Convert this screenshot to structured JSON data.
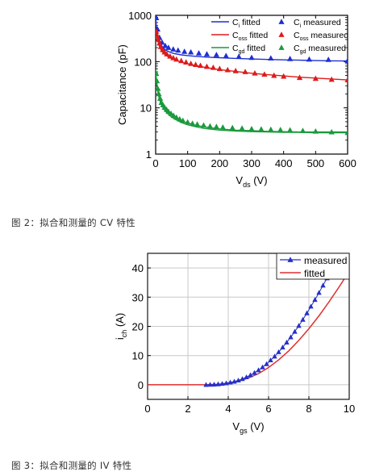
{
  "captions": {
    "fig2": "图 2：拟合和测量的 CV 特性",
    "fig3": "图 3：拟合和测量的 IV 特性"
  },
  "chart_data": [
    {
      "type": "line",
      "scale_y": "log",
      "xlabel": "V",
      "xlabel_sub": "ds",
      "xlabel_unit": " (V)",
      "ylabel": "Capacitance (pF)",
      "xlim": [
        0,
        600
      ],
      "ylim": [
        1,
        1000
      ],
      "xticks": [
        0,
        100,
        200,
        300,
        400,
        500,
        600
      ],
      "yticks": [
        1,
        10,
        100,
        1000
      ],
      "ytick_labels": [
        "1",
        "10",
        "100",
        "1000"
      ],
      "grid": false,
      "legend_position": "top-right",
      "series": [
        {
          "name": "C_i fitted",
          "legend_base": "C",
          "legend_sub": "i",
          "legend_suffix": " fitted",
          "color": "#1f2fd0",
          "kind": "line",
          "x": [
            0,
            2,
            4,
            6,
            8,
            10,
            15,
            20,
            30,
            40,
            50,
            60,
            80,
            100,
            125,
            150,
            200,
            250,
            300,
            350,
            400,
            450,
            500,
            550,
            600
          ],
          "y": [
            900,
            600,
            470,
            390,
            340,
            300,
            245,
            215,
            180,
            165,
            155,
            148,
            140,
            135,
            130,
            126,
            121,
            117,
            114,
            111,
            109,
            107,
            105,
            104,
            103
          ]
        },
        {
          "name": "C_oss fitted",
          "legend_base": "C",
          "legend_sub": "oss",
          "legend_suffix": " fitted",
          "color": "#dd1b1b",
          "kind": "line",
          "x": [
            0,
            2,
            4,
            6,
            8,
            10,
            15,
            20,
            30,
            40,
            50,
            60,
            80,
            100,
            125,
            150,
            200,
            250,
            300,
            350,
            400,
            450,
            500,
            550,
            600
          ],
          "y": [
            500,
            400,
            330,
            290,
            260,
            230,
            190,
            165,
            140,
            126,
            116,
            108,
            97,
            89,
            82,
            76,
            67,
            61,
            56,
            52,
            49,
            46,
            44,
            42,
            40
          ]
        },
        {
          "name": "C_gd fitted",
          "legend_base": "C",
          "legend_sub": "gd",
          "legend_suffix": " fitted",
          "color": "#1a9a3c",
          "kind": "line",
          "x": [
            0,
            2,
            4,
            6,
            8,
            10,
            15,
            20,
            30,
            40,
            50,
            60,
            80,
            100,
            125,
            150,
            200,
            250,
            300,
            350,
            400,
            450,
            500,
            550,
            600
          ],
          "y": [
            60,
            40,
            30,
            24,
            20,
            17,
            13,
            11,
            8.5,
            7.2,
            6.3,
            5.7,
            4.8,
            4.3,
            3.9,
            3.6,
            3.3,
            3.15,
            3.05,
            3.0,
            2.95,
            2.95,
            2.9,
            2.9,
            2.9
          ],
          "y_secondary": [
            66,
            44,
            33,
            26,
            22,
            19,
            14.5,
            12,
            9.4,
            8.0,
            7.0,
            6.3,
            5.3,
            4.7,
            4.2,
            3.9,
            3.5,
            3.3,
            3.2,
            3.1,
            3.05,
            3.0,
            3.0,
            3.0,
            3.0
          ]
        },
        {
          "name": "C_i measured",
          "legend_base": "C",
          "legend_sub": "i",
          "legend_suffix": " measured",
          "color": "#1f2fd0",
          "kind": "marker",
          "x": [
            2,
            6,
            12,
            20,
            30,
            40,
            55,
            70,
            90,
            110,
            135,
            160,
            190,
            220,
            260,
            300,
            360,
            420,
            480,
            540,
            600
          ],
          "y": [
            880,
            500,
            330,
            260,
            220,
            200,
            185,
            175,
            165,
            160,
            152,
            145,
            140,
            133,
            128,
            122,
            118,
            115,
            112,
            110,
            105
          ]
        },
        {
          "name": "C_oss measured",
          "legend_base": "C",
          "legend_sub": "oss",
          "legend_suffix": " measured",
          "color": "#dd1b1b",
          "kind": "marker",
          "x": [
            2,
            5,
            8,
            12,
            16,
            22,
            28,
            35,
            45,
            55,
            65,
            80,
            95,
            110,
            125,
            140,
            160,
            180,
            200,
            225,
            250,
            280,
            310,
            340,
            370,
            400,
            450,
            500,
            550,
            600
          ],
          "y": [
            450,
            360,
            300,
            250,
            210,
            180,
            160,
            145,
            130,
            120,
            112,
            104,
            97,
            90,
            86,
            82,
            78,
            74,
            70,
            66,
            63,
            60,
            56,
            53,
            50,
            48,
            45,
            43,
            41,
            40
          ]
        },
        {
          "name": "C_gd measured",
          "legend_base": "C",
          "legend_sub": "gd",
          "legend_suffix": " measured",
          "color": "#1a9a3c",
          "kind": "marker",
          "x": [
            2,
            4,
            7,
            10,
            14,
            18,
            23,
            28,
            34,
            40,
            48,
            56,
            65,
            75,
            85,
            100,
            115,
            130,
            150,
            170,
            190,
            210,
            240,
            270,
            300,
            330,
            360,
            390,
            420,
            460,
            500,
            550,
            600
          ],
          "y": [
            55,
            38,
            26,
            20,
            16,
            13,
            11.5,
            10.2,
            9.2,
            8.3,
            7.5,
            6.8,
            6.2,
            5.7,
            5.3,
            4.9,
            4.6,
            4.4,
            4.2,
            4.0,
            3.9,
            3.8,
            3.7,
            3.6,
            3.5,
            3.45,
            3.4,
            3.35,
            3.3,
            3.2,
            3.1,
            3.0,
            2.9
          ]
        }
      ]
    },
    {
      "type": "line",
      "xlabel": "V",
      "xlabel_sub": "gs",
      "xlabel_unit": " (V)",
      "ylabel": "i",
      "ylabel_sub": "ch",
      "ylabel_unit": " (A)",
      "xlim": [
        0,
        10
      ],
      "ylim": [
        -5,
        45
      ],
      "xticks": [
        0,
        2,
        4,
        6,
        8,
        10
      ],
      "yticks": [
        0,
        10,
        20,
        30,
        40
      ],
      "grid": true,
      "legend_position": "top-right",
      "series": [
        {
          "name": "measured",
          "color": "#2530c8",
          "kind": "line+marker",
          "x": [
            2.9,
            3.1,
            3.3,
            3.5,
            3.7,
            3.9,
            4.1,
            4.3,
            4.5,
            4.7,
            4.9,
            5.1,
            5.3,
            5.5,
            5.7,
            5.9,
            6.1,
            6.3,
            6.5,
            6.7,
            6.9,
            7.1,
            7.3,
            7.5,
            7.7,
            7.9,
            8.1,
            8.3,
            8.5,
            8.7,
            8.9,
            9.1,
            9.3,
            9.5,
            9.7
          ],
          "y": [
            0.0,
            0.05,
            0.1,
            0.2,
            0.35,
            0.55,
            0.8,
            1.1,
            1.5,
            2.0,
            2.6,
            3.3,
            4.1,
            5.0,
            6.0,
            7.1,
            8.4,
            9.7,
            11.2,
            12.8,
            14.5,
            16.3,
            18.2,
            20.2,
            22.3,
            24.5,
            26.8,
            29.1,
            31.5,
            34.0,
            36.5,
            39.0,
            41.6,
            44.2,
            46.9
          ]
        },
        {
          "name": "fitted",
          "color": "#e03030",
          "kind": "line",
          "x": [
            0,
            1,
            2,
            2.5,
            3,
            3.5,
            4,
            4.5,
            5,
            5.5,
            6,
            6.5,
            7,
            7.5,
            8,
            8.5,
            9,
            9.5,
            9.9
          ],
          "y": [
            0,
            0,
            0,
            0,
            0.02,
            0.15,
            0.5,
            1.2,
            2.3,
            3.8,
            5.9,
            8.5,
            11.6,
            15.2,
            19.2,
            23.6,
            28.4,
            33.5,
            37.8
          ]
        }
      ]
    }
  ]
}
